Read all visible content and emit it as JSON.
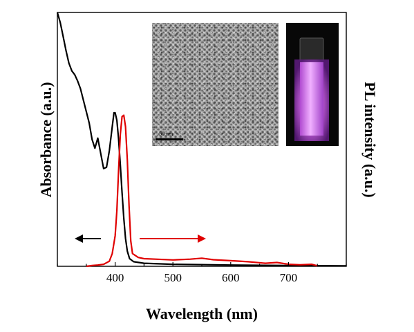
{
  "chart_data": {
    "type": "line",
    "xlabel": "Wavelength (nm)",
    "ylabel_left": "Absorbance (a.u.)",
    "ylabel_right": "PL intensity (a.u.)",
    "xlim": [
      300,
      800
    ],
    "ylim": [
      0,
      1
    ],
    "x_ticks": [
      400,
      500,
      600,
      700
    ],
    "y_tick_labels": "none",
    "grid": false,
    "legend": "none",
    "series": [
      {
        "color": "#000000",
        "axis": "left",
        "points": [
          [
            300,
            1.0
          ],
          [
            305,
            0.96
          ],
          [
            310,
            0.905
          ],
          [
            315,
            0.85
          ],
          [
            320,
            0.8
          ],
          [
            325,
            0.77
          ],
          [
            330,
            0.755
          ],
          [
            335,
            0.73
          ],
          [
            340,
            0.7
          ],
          [
            345,
            0.655
          ],
          [
            350,
            0.61
          ],
          [
            355,
            0.565
          ],
          [
            360,
            0.5
          ],
          [
            365,
            0.465
          ],
          [
            370,
            0.505
          ],
          [
            375,
            0.445
          ],
          [
            380,
            0.385
          ],
          [
            385,
            0.39
          ],
          [
            390,
            0.455
          ],
          [
            395,
            0.55
          ],
          [
            398,
            0.605
          ],
          [
            400,
            0.605
          ],
          [
            403,
            0.575
          ],
          [
            406,
            0.5
          ],
          [
            409,
            0.4
          ],
          [
            412,
            0.29
          ],
          [
            415,
            0.19
          ],
          [
            418,
            0.11
          ],
          [
            421,
            0.06
          ],
          [
            425,
            0.03
          ],
          [
            432,
            0.018
          ],
          [
            450,
            0.012
          ],
          [
            500,
            0.008
          ],
          [
            600,
            0.005
          ],
          [
            700,
            0.003
          ],
          [
            800,
            0.002
          ]
        ]
      },
      {
        "color": "#e00000",
        "axis": "right",
        "points": [
          [
            350,
            0.0
          ],
          [
            360,
            0.003
          ],
          [
            370,
            0.005
          ],
          [
            380,
            0.008
          ],
          [
            390,
            0.02
          ],
          [
            395,
            0.05
          ],
          [
            400,
            0.12
          ],
          [
            403,
            0.22
          ],
          [
            406,
            0.38
          ],
          [
            409,
            0.52
          ],
          [
            412,
            0.59
          ],
          [
            415,
            0.595
          ],
          [
            418,
            0.55
          ],
          [
            421,
            0.42
          ],
          [
            424,
            0.24
          ],
          [
            427,
            0.1
          ],
          [
            430,
            0.05
          ],
          [
            440,
            0.035
          ],
          [
            450,
            0.03
          ],
          [
            470,
            0.028
          ],
          [
            500,
            0.025
          ],
          [
            530,
            0.028
          ],
          [
            550,
            0.032
          ],
          [
            570,
            0.026
          ],
          [
            600,
            0.022
          ],
          [
            630,
            0.018
          ],
          [
            660,
            0.012
          ],
          [
            680,
            0.015
          ],
          [
            700,
            0.008
          ],
          [
            720,
            0.006
          ],
          [
            740,
            0.008
          ],
          [
            750,
            0.002
          ]
        ]
      }
    ],
    "annotations": [
      {
        "type": "arrow",
        "direction": "left",
        "color": "#000000",
        "points_to": "left axis"
      },
      {
        "type": "arrow",
        "direction": "right",
        "color": "#e00000",
        "points_to": "right axis"
      }
    ],
    "insets": [
      {
        "kind": "TEM micrograph",
        "scale_bar_text": "50 nm"
      },
      {
        "kind": "photo of glowing cuvette",
        "glow_color": "#d070e0"
      }
    ]
  }
}
